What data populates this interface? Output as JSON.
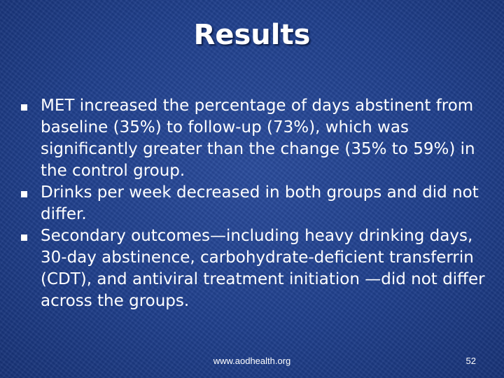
{
  "slide": {
    "title": "Results",
    "bullets": [
      {
        "text": "MET increased the percentage of days abstinent from baseline (35%) to follow-up (73%), which was significantly greater than the change (35% to 59%) in the control group."
      },
      {
        "text": "Drinks per week decreased in both groups and did not differ."
      },
      {
        "text": "Secondary outcomes—including heavy drinking days, 30-day abstinence, carbohydrate-deficient transferrin (CDT), and antiviral treatment initiation —did not differ across the groups."
      }
    ],
    "footer": {
      "url": "www.aodhealth.org",
      "page_number": "52"
    }
  },
  "icons": {
    "bullet": "square-bullet-icon"
  },
  "colors": {
    "background": "#1f3f8c",
    "text": "#ffffff"
  }
}
